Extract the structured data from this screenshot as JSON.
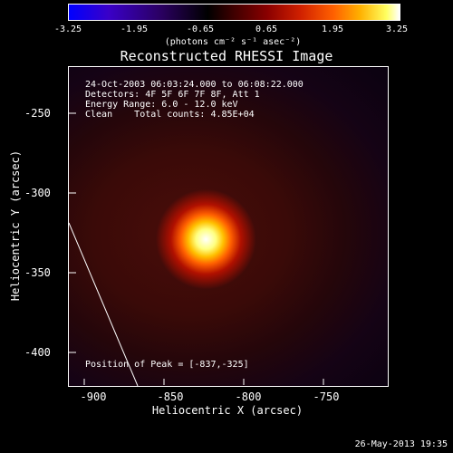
{
  "colorbar": {
    "tick_labels": [
      "-3.25",
      "-1.95",
      "-0.65",
      "0.65",
      "1.95",
      "3.25"
    ],
    "units": "(photons cm⁻² s⁻¹ asec⁻²)",
    "colors": [
      "#0000ff",
      "#000000",
      "#ff0000",
      "#ffff00",
      "#ffffff"
    ]
  },
  "title": "Reconstructed RHESSI Image",
  "info": {
    "line1": "24-Oct-2003 06:03:24.000 to 06:08:22.000",
    "line2": "Detectors: 4F 5F 6F 7F 8F, Att 1",
    "line3": "Energy Range: 6.0 - 12.0 keV",
    "line4": "Clean    Total counts: 4.85E+04"
  },
  "axes": {
    "xlabel": "Heliocentric X (arcsec)",
    "ylabel": "Heliocentric Y (arcsec)",
    "xticks": [
      "-900",
      "-850",
      "-800",
      "-750"
    ],
    "yticks": [
      "-250",
      "-300",
      "-350",
      "-400"
    ],
    "xlim": [
      -910,
      -710
    ],
    "ylim": [
      -415,
      -215
    ]
  },
  "peak_text": "Position of Peak = [-837,-325]",
  "timestamp": "26-May-2013 19:35"
}
